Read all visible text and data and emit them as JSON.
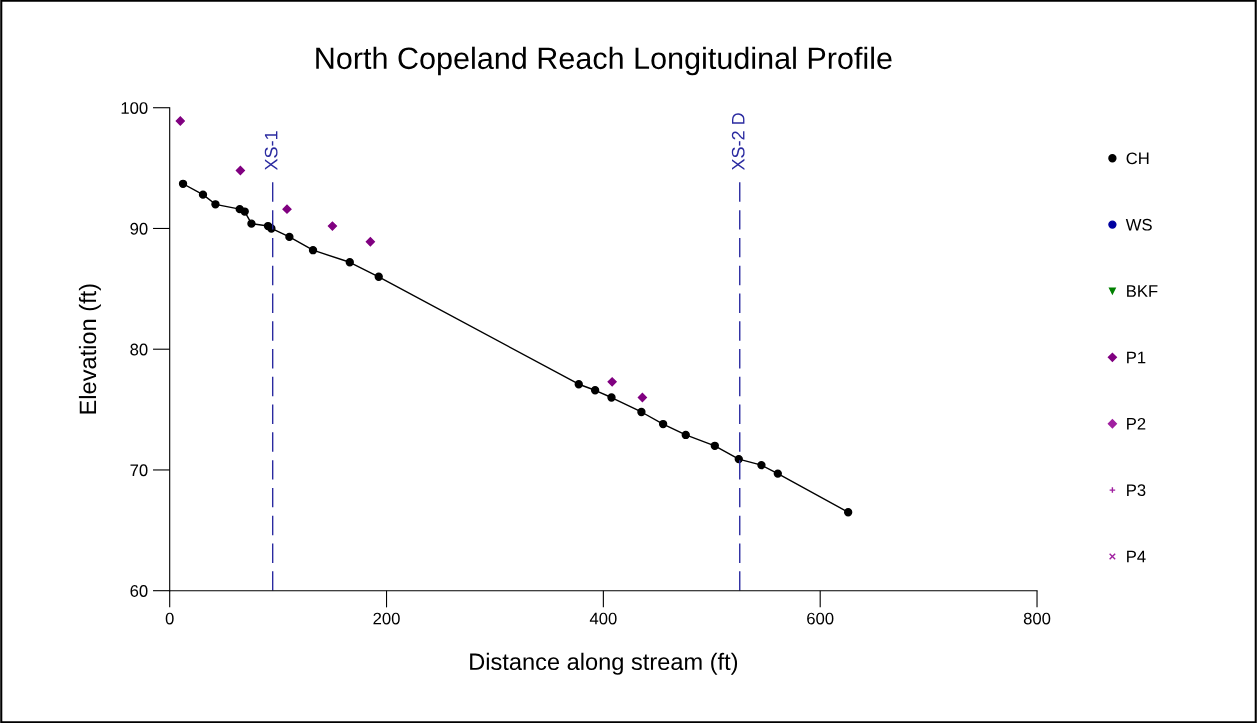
{
  "chart_data": {
    "type": "line",
    "title": "North Copeland Reach Longitudinal Profile",
    "xlabel": "Distance along stream (ft)",
    "ylabel": "Elevation (ft)",
    "xlim": [
      0,
      800
    ],
    "xticks": [
      0,
      200,
      400,
      600,
      800
    ],
    "ylim": [
      60,
      100
    ],
    "yticks": [
      60,
      70,
      80,
      90,
      100
    ],
    "grid": false,
    "legend": "right",
    "series": [
      {
        "name": "CH",
        "marker": "circle",
        "color": "#000000",
        "x": [
          12.3,
          30.7,
          42.2,
          64.6,
          69.2,
          75.4,
          90.7,
          93.8,
          110.4,
          132.2,
          166.1,
          192.8,
          377.3,
          392.4,
          407.5,
          435.1,
          455.1,
          476.0,
          502.8,
          524.9,
          545.8,
          560.9,
          625.8
        ],
        "values": [
          93.7,
          92.8,
          92.0,
          91.6,
          91.4,
          90.4,
          90.2,
          90.0,
          89.3,
          88.2,
          87.2,
          86.0,
          77.1,
          76.6,
          76.0,
          74.8,
          73.8,
          72.9,
          72.0,
          70.9,
          70.4,
          69.7,
          66.5
        ]
      },
      {
        "name": "WS",
        "type": "scatter",
        "marker": "circle",
        "color": "#0000a0"
      },
      {
        "name": "BKF",
        "type": "scatter",
        "marker": "triangle",
        "color": "#008000"
      },
      {
        "name": "P1",
        "type": "scatter",
        "marker": "diamond",
        "color": "#800080",
        "x": [
          9.8,
          65.2,
          108.2,
          150.1,
          185.1,
          408.1,
          436.0
        ],
        "values": [
          98.9,
          94.8,
          91.6,
          90.2,
          88.9,
          77.3,
          76.0
        ]
      },
      {
        "name": "P2",
        "type": "scatter",
        "marker": "diamond",
        "color": "#a020a0"
      },
      {
        "name": "P3",
        "type": "scatter",
        "marker": "cross",
        "color": "#a020a0"
      },
      {
        "name": "P4",
        "type": "scatter",
        "marker": "x",
        "color": "#a020a0"
      }
    ],
    "ref_lines": [
      {
        "axis": "x",
        "value": 95,
        "label": "XS-1",
        "color": "#2a2aa0",
        "line_style": "dashed"
      },
      {
        "axis": "x",
        "value": 525.8,
        "label": "XS-2 D",
        "color": "#2a2aa0",
        "line_style": "dashed"
      }
    ]
  }
}
